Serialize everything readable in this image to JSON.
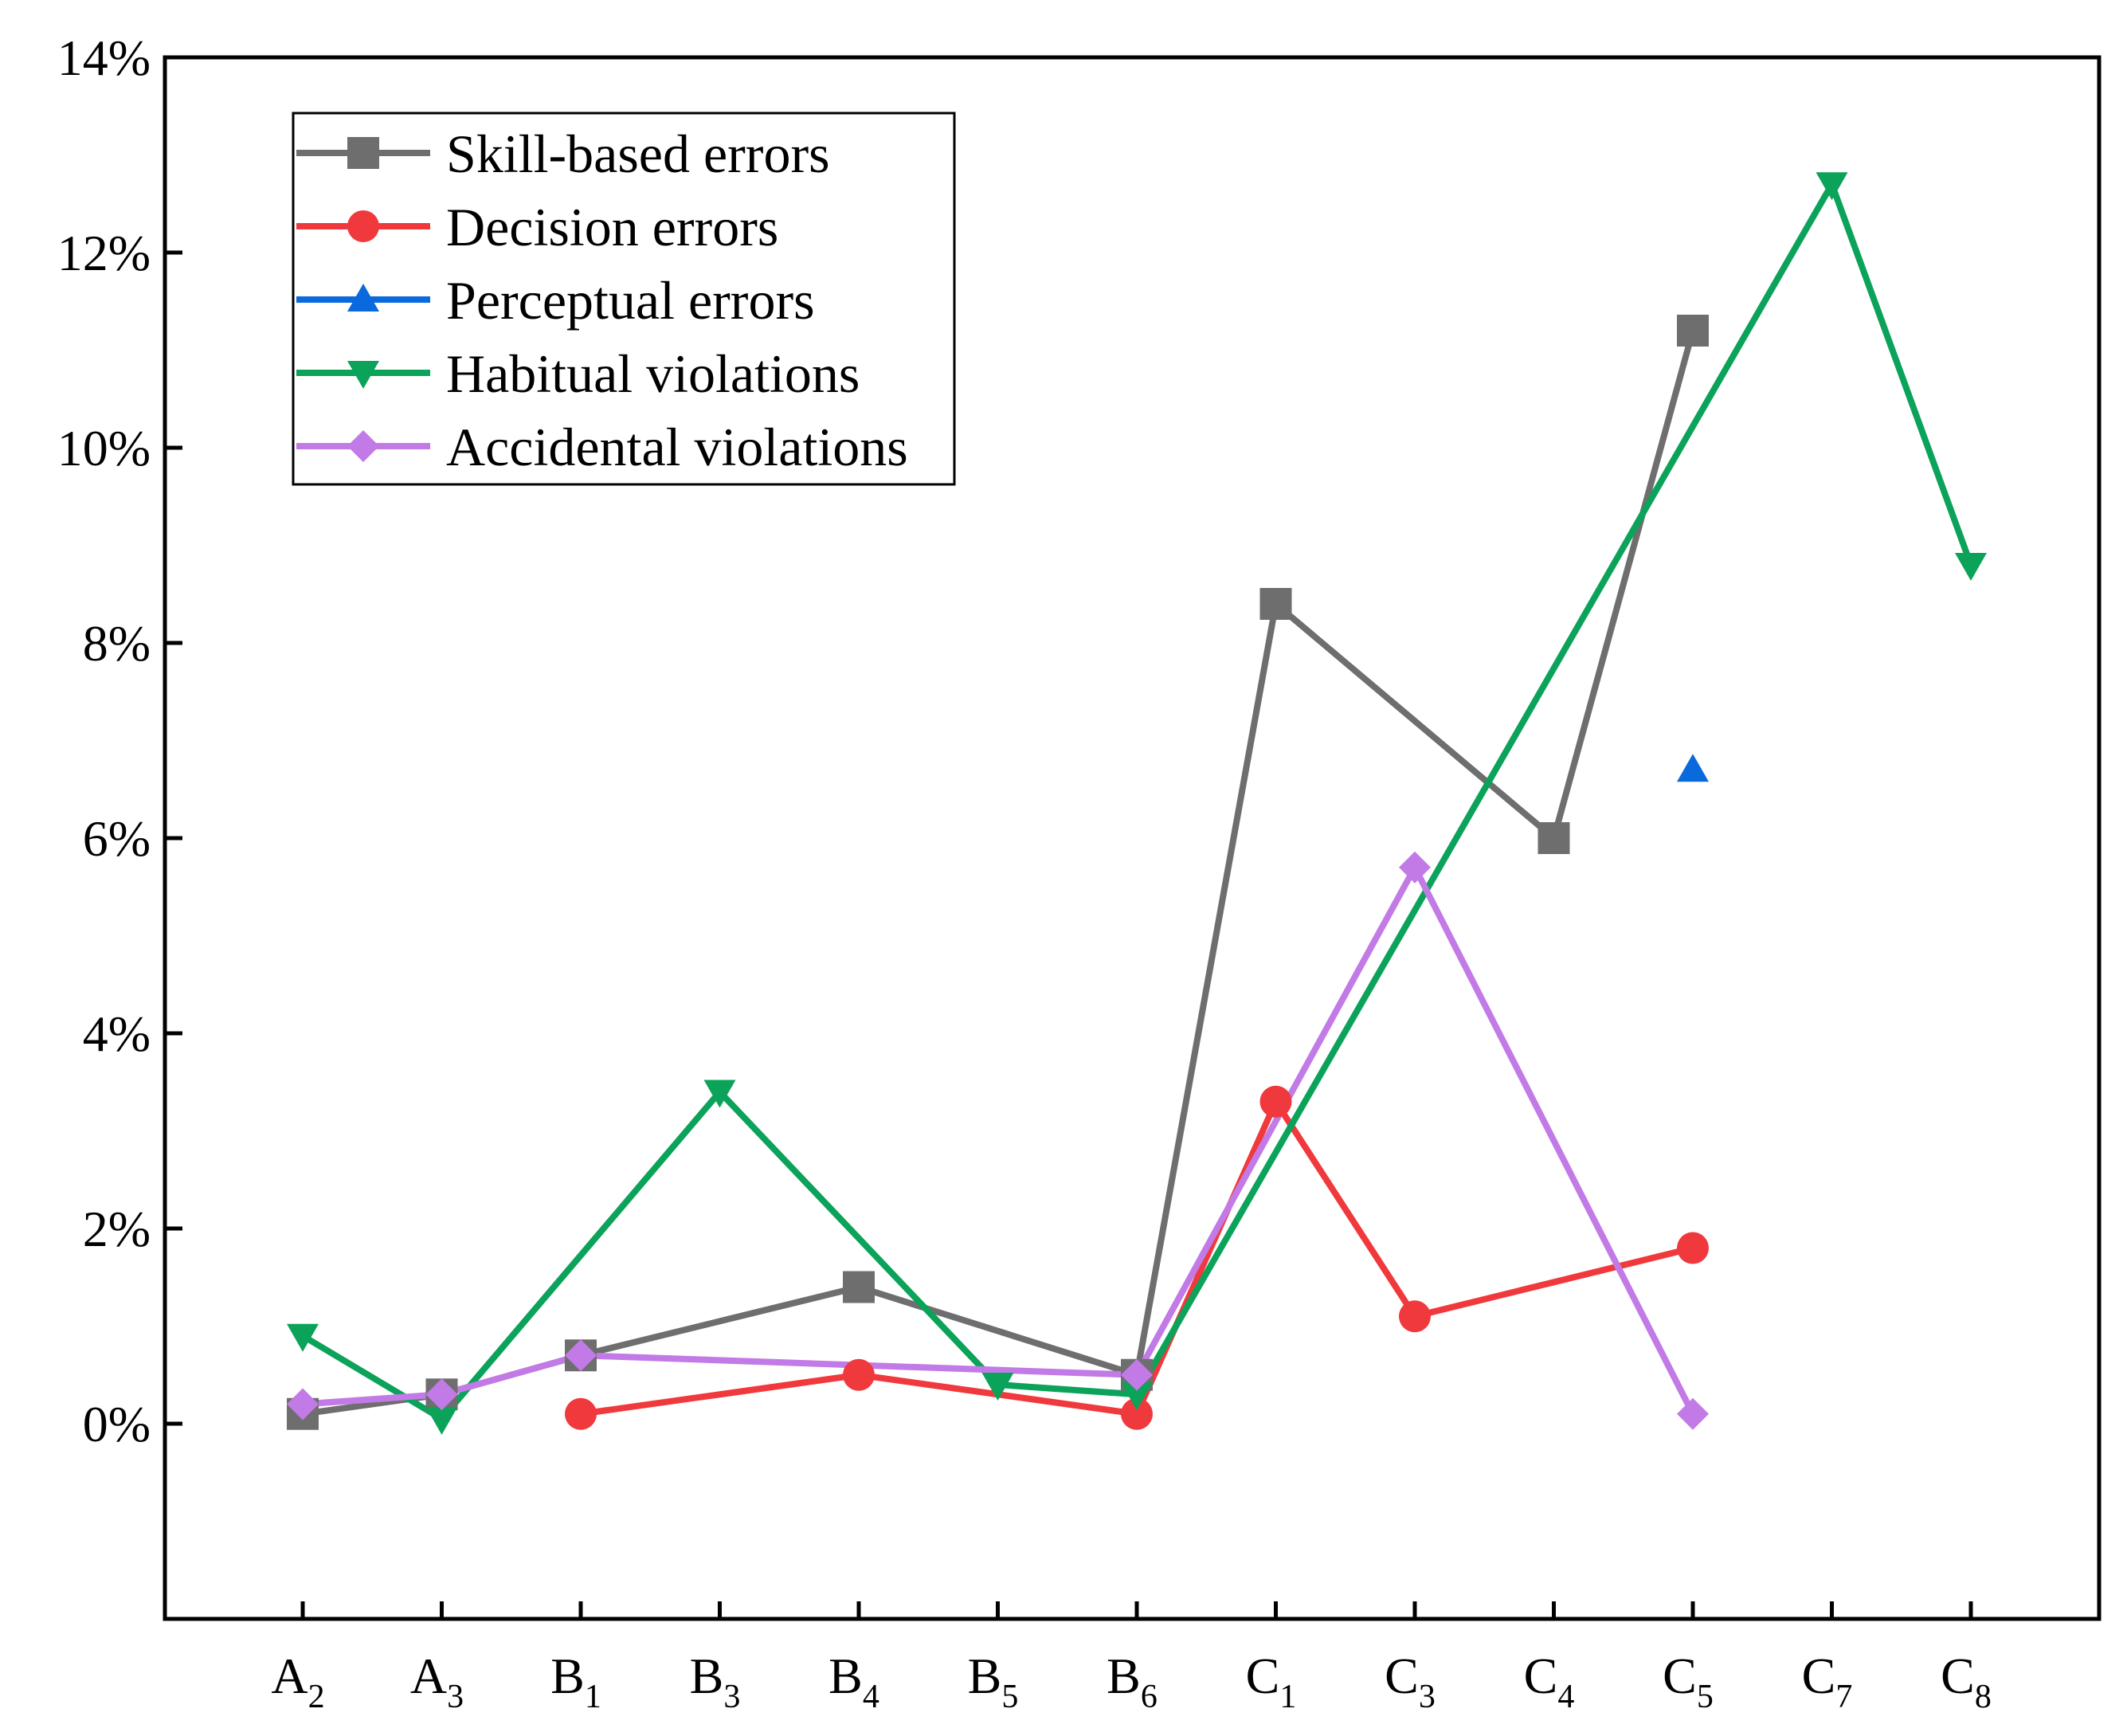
{
  "chart_data": {
    "type": "line",
    "title": "",
    "xlabel": "",
    "ylabel": "",
    "ylim": [
      -2,
      14
    ],
    "yticks": [
      0,
      2,
      4,
      6,
      8,
      10,
      12,
      14
    ],
    "ytick_labels": [
      "0%",
      "2%",
      "4%",
      "6%",
      "8%",
      "10%",
      "12%",
      "14%"
    ],
    "categories": [
      {
        "main": "A",
        "sub": "2"
      },
      {
        "main": "A",
        "sub": "3"
      },
      {
        "main": "B",
        "sub": "1"
      },
      {
        "main": "B",
        "sub": "3"
      },
      {
        "main": "B",
        "sub": "4"
      },
      {
        "main": "B",
        "sub": "5"
      },
      {
        "main": "B",
        "sub": "6"
      },
      {
        "main": "C",
        "sub": "1"
      },
      {
        "main": "C",
        "sub": "3"
      },
      {
        "main": "C",
        "sub": "4"
      },
      {
        "main": "C",
        "sub": "5"
      },
      {
        "main": "C",
        "sub": "7"
      },
      {
        "main": "C",
        "sub": "8"
      }
    ],
    "legend_position": "top-left",
    "series": [
      {
        "name": "Skill-based errors",
        "color": "#6e6e6e",
        "marker": "square",
        "values": [
          0.1,
          0.3,
          0.7,
          null,
          1.4,
          null,
          0.5,
          8.4,
          null,
          6.0,
          11.2,
          null,
          null
        ]
      },
      {
        "name": "Decision errors",
        "color": "#f0393c",
        "marker": "circle",
        "values": [
          null,
          null,
          0.1,
          null,
          0.5,
          null,
          0.1,
          3.3,
          1.1,
          null,
          1.8,
          null,
          null
        ]
      },
      {
        "name": "Perceptual errors",
        "color": "#0a69dc",
        "marker": "triangle-up",
        "values": [
          null,
          null,
          null,
          null,
          null,
          null,
          null,
          null,
          null,
          null,
          6.7,
          null,
          null
        ]
      },
      {
        "name": "Habitual violations",
        "color": "#0ba25a",
        "marker": "triangle-down",
        "values": [
          0.9,
          0.05,
          null,
          3.4,
          null,
          0.4,
          0.3,
          null,
          null,
          null,
          null,
          12.7,
          8.8
        ]
      },
      {
        "name": "Accidental violations",
        "color": "#c27ae6",
        "marker": "diamond",
        "values": [
          0.2,
          0.3,
          0.7,
          null,
          null,
          null,
          0.5,
          null,
          5.7,
          null,
          0.1,
          null,
          null
        ]
      }
    ]
  }
}
